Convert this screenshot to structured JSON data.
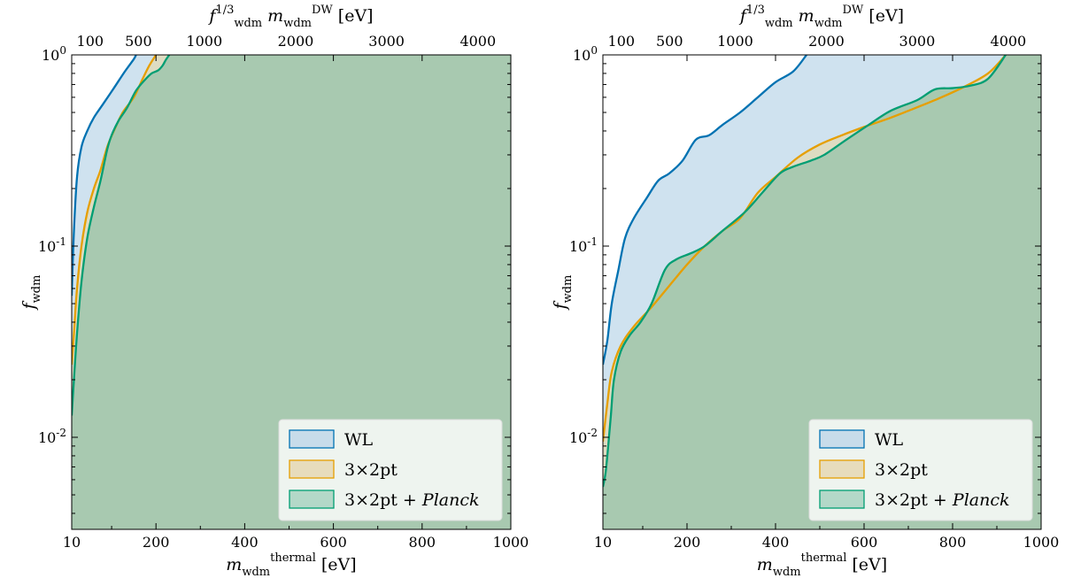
{
  "chart_data": [
    {
      "type": "area",
      "panel": "left",
      "xlabel": "m_wdm^thermal [eV]",
      "ylabel": "f_wdm",
      "top_xlabel": "f_wdm^{1/3} m_wdm^DW [eV]",
      "xlim": [
        10,
        1000
      ],
      "ylim": [
        0.0033,
        1.0
      ],
      "yscale": "log",
      "x_ticks": [
        "10",
        "200",
        "400",
        "600",
        "800",
        "1000"
      ],
      "y_ticks": [
        "10^{-2}",
        "10^{-1}",
        "10^{0}"
      ],
      "top_ticks": [
        "100",
        "500",
        "1000",
        "2000",
        "3000",
        "4000"
      ],
      "legend": {
        "placement": "lower-right",
        "entries": [
          "WL",
          "3×2pt",
          "3×2pt + Planck"
        ]
      },
      "series": [
        {
          "name": "WL",
          "color": "#0072b2",
          "points": [
            [
              10,
              0.055
            ],
            [
              15,
              0.12
            ],
            [
              22,
              0.23
            ],
            [
              32,
              0.33
            ],
            [
              45,
              0.4
            ],
            [
              60,
              0.47
            ],
            [
              80,
              0.55
            ],
            [
              105,
              0.67
            ],
            [
              130,
              0.82
            ],
            [
              150,
              0.95
            ],
            [
              155,
              1.0
            ]
          ]
        },
        {
          "name": "3×2pt",
          "color": "#e69f00",
          "points": [
            [
              10,
              0.024
            ],
            [
              15,
              0.035
            ],
            [
              22,
              0.06
            ],
            [
              32,
              0.1
            ],
            [
              45,
              0.15
            ],
            [
              60,
              0.2
            ],
            [
              75,
              0.25
            ],
            [
              90,
              0.33
            ],
            [
              105,
              0.4
            ],
            [
              125,
              0.5
            ],
            [
              150,
              0.6
            ],
            [
              170,
              0.75
            ],
            [
              185,
              0.88
            ],
            [
              200,
              1.0
            ]
          ]
        },
        {
          "name": "3×2pt + Planck",
          "color": "#009e73",
          "points": [
            [
              10,
              0.013
            ],
            [
              15,
              0.02
            ],
            [
              22,
              0.035
            ],
            [
              32,
              0.065
            ],
            [
              45,
              0.11
            ],
            [
              60,
              0.16
            ],
            [
              75,
              0.22
            ],
            [
              90,
              0.32
            ],
            [
              100,
              0.38
            ],
            [
              115,
              0.45
            ],
            [
              135,
              0.53
            ],
            [
              155,
              0.65
            ],
            [
              175,
              0.74
            ],
            [
              190,
              0.8
            ],
            [
              205,
              0.83
            ],
            [
              215,
              0.88
            ],
            [
              222,
              0.94
            ],
            [
              230,
              1.0
            ]
          ]
        }
      ]
    },
    {
      "type": "area",
      "panel": "right",
      "xlabel": "m_wdm^thermal [eV]",
      "ylabel": "f_wdm",
      "top_xlabel": "f_wdm^{1/3} m_wdm^DW [eV]",
      "xlim": [
        10,
        1000
      ],
      "ylim": [
        0.0033,
        1.0
      ],
      "yscale": "log",
      "x_ticks": [
        "10",
        "200",
        "400",
        "600",
        "800",
        "1000"
      ],
      "y_ticks": [
        "10^{-2}",
        "10^{-1}",
        "10^{0}"
      ],
      "top_ticks": [
        "100",
        "500",
        "1000",
        "2000",
        "3000",
        "4000"
      ],
      "legend": {
        "placement": "lower-right",
        "entries": [
          "WL",
          "3×2pt",
          "3×2pt + Planck"
        ]
      },
      "series": [
        {
          "name": "WL",
          "color": "#0072b2",
          "points": [
            [
              10,
              0.024
            ],
            [
              20,
              0.032
            ],
            [
              30,
              0.05
            ],
            [
              45,
              0.075
            ],
            [
              60,
              0.11
            ],
            [
              80,
              0.14
            ],
            [
              110,
              0.18
            ],
            [
              135,
              0.22
            ],
            [
              160,
              0.24
            ],
            [
              190,
              0.28
            ],
            [
              220,
              0.36
            ],
            [
              250,
              0.38
            ],
            [
              280,
              0.43
            ],
            [
              320,
              0.5
            ],
            [
              360,
              0.6
            ],
            [
              400,
              0.72
            ],
            [
              440,
              0.82
            ],
            [
              470,
              1.0
            ]
          ]
        },
        {
          "name": "3×2pt",
          "color": "#e69f00",
          "points": [
            [
              10,
              0.0095
            ],
            [
              20,
              0.015
            ],
            [
              30,
              0.022
            ],
            [
              50,
              0.03
            ],
            [
              80,
              0.038
            ],
            [
              120,
              0.048
            ],
            [
              160,
              0.062
            ],
            [
              200,
              0.08
            ],
            [
              240,
              0.1
            ],
            [
              280,
              0.12
            ],
            [
              320,
              0.14
            ],
            [
              360,
              0.19
            ],
            [
              400,
              0.23
            ],
            [
              450,
              0.29
            ],
            [
              500,
              0.34
            ],
            [
              550,
              0.38
            ],
            [
              600,
              0.42
            ],
            [
              650,
              0.46
            ],
            [
              700,
              0.51
            ],
            [
              760,
              0.58
            ],
            [
              820,
              0.67
            ],
            [
              880,
              0.8
            ],
            [
              920,
              1.0
            ]
          ]
        },
        {
          "name": "3×2pt + Planck",
          "color": "#009e73",
          "points": [
            [
              10,
              0.0055
            ],
            [
              16,
              0.0065
            ],
            [
              22,
              0.009
            ],
            [
              28,
              0.013
            ],
            [
              35,
              0.02
            ],
            [
              50,
              0.028
            ],
            [
              70,
              0.034
            ],
            [
              95,
              0.04
            ],
            [
              120,
              0.05
            ],
            [
              150,
              0.075
            ],
            [
              175,
              0.085
            ],
            [
              210,
              0.092
            ],
            [
              240,
              0.1
            ],
            [
              280,
              0.12
            ],
            [
              330,
              0.15
            ],
            [
              370,
              0.19
            ],
            [
              410,
              0.24
            ],
            [
              440,
              0.26
            ],
            [
              480,
              0.28
            ],
            [
              510,
              0.3
            ],
            [
              560,
              0.36
            ],
            [
              610,
              0.43
            ],
            [
              660,
              0.51
            ],
            [
              720,
              0.58
            ],
            [
              760,
              0.66
            ],
            [
              800,
              0.67
            ],
            [
              840,
              0.69
            ],
            [
              880,
              0.75
            ],
            [
              920,
              1.0
            ]
          ]
        }
      ]
    }
  ],
  "legend_labels": {
    "wl": "WL",
    "three_x_two": "3×2pt",
    "combined_prefix": "3×2pt + ",
    "combined_italic": "Planck"
  }
}
